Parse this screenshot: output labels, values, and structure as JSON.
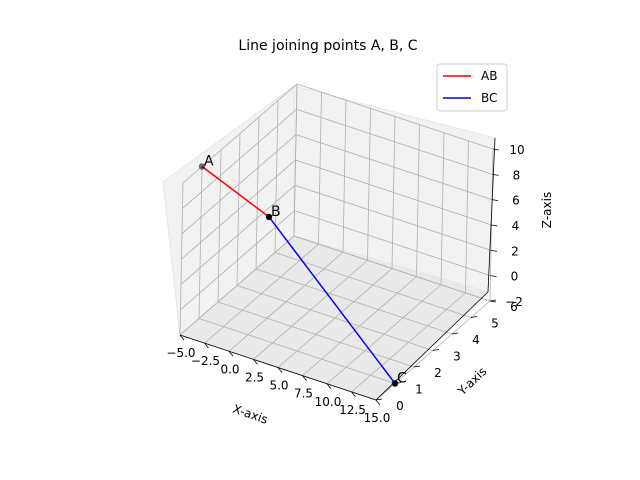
{
  "chart_data": {
    "type": "line",
    "title": "Line joining points A, B, C",
    "xlabel": "X-axis",
    "ylabel": "Y-axis",
    "zlabel": "Z-axis",
    "xlim": [
      -5,
      15
    ],
    "ylim": [
      0,
      6
    ],
    "zlim": [
      -2,
      10
    ],
    "grid": true,
    "legend_position": "top-right",
    "xticks": [
      "−5.0",
      "−2.5",
      "0.0",
      "2.5",
      "5.0",
      "7.5",
      "10.0",
      "12.5",
      "15.0"
    ],
    "yticks": [
      "0",
      "1",
      "2",
      "3",
      "4",
      "5",
      "6"
    ],
    "zticks": [
      "−2",
      "0",
      "2",
      "4",
      "6",
      "8",
      "10"
    ],
    "points": [
      {
        "label": "A",
        "x": -5,
        "y": 1,
        "z": 10
      },
      {
        "label": "B",
        "x": 0,
        "y": 2,
        "z": 6
      },
      {
        "label": "C",
        "x": 15,
        "y": 1,
        "z": -2
      }
    ],
    "series": [
      {
        "name": "AB",
        "color": "#ff0000",
        "from": "A",
        "to": "B"
      },
      {
        "name": "BC",
        "color": "#0000ff",
        "from": "B",
        "to": "C"
      }
    ]
  }
}
